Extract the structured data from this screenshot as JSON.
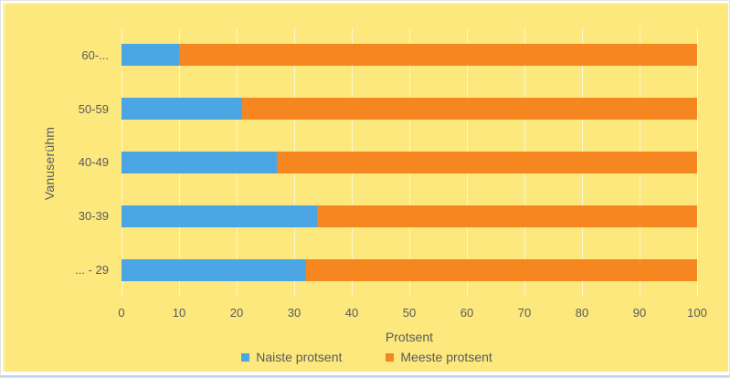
{
  "chart_data": {
    "type": "bar",
    "orientation": "horizontal-stacked",
    "title": "",
    "categories": [
      "60-...",
      "50-59",
      "40-49",
      "30-39",
      "... - 29"
    ],
    "series": [
      {
        "name": "Naiste protsent",
        "color": "#4BA6E3",
        "values": [
          10,
          21,
          27,
          34,
          32
        ]
      },
      {
        "name": "Meeste protsent",
        "color": "#F6861F",
        "values": [
          90,
          79,
          73,
          66,
          68
        ]
      }
    ],
    "xlabel": "Protsent",
    "ylabel": "Vanuserühm",
    "xlim": [
      0,
      100
    ],
    "xticks": [
      0,
      10,
      20,
      30,
      40,
      50,
      60,
      70,
      80,
      90,
      100
    ],
    "grid": "vertical",
    "legend_position": "bottom",
    "colors": {
      "background": "#FCE87D",
      "gridline": "rgba(255,255,255,0.62)",
      "text": "#5A5A5A"
    }
  }
}
